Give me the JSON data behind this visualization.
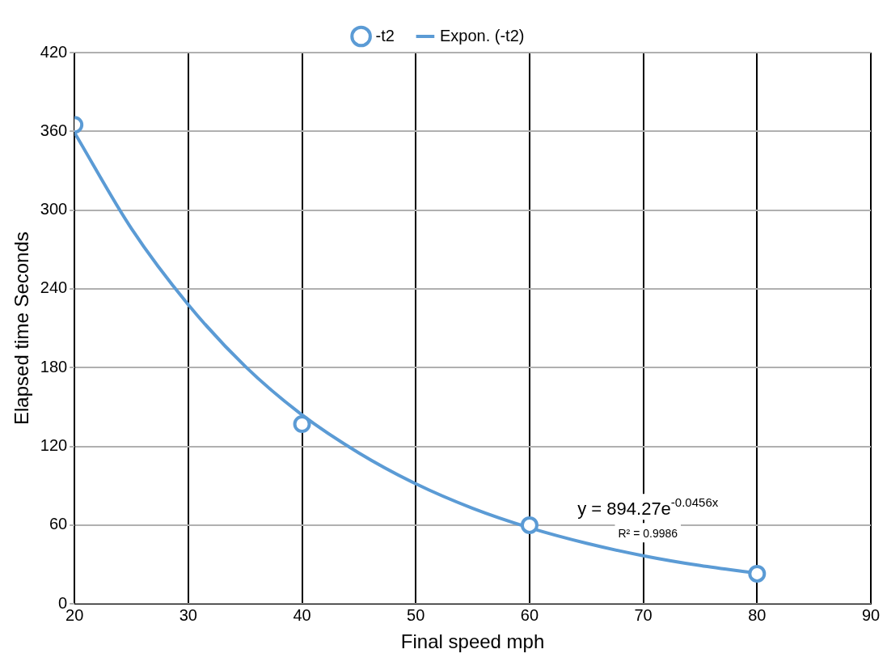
{
  "chart_data": {
    "type": "scatter",
    "xlabel": "Final speed mph",
    "ylabel": "Elapsed time Seconds",
    "xlim": [
      20,
      90
    ],
    "xticks": [
      20,
      30,
      40,
      50,
      60,
      70,
      80,
      90
    ],
    "ylim": [
      0,
      420
    ],
    "yticks": [
      0,
      60,
      120,
      180,
      240,
      300,
      360,
      420
    ],
    "grid": true,
    "legend": "top",
    "series": [
      {
        "name": "-t2",
        "type": "scatter",
        "marker": "circle",
        "color": "#5b9bd5",
        "x": [
          20,
          40,
          60,
          80
        ],
        "values": [
          365,
          137,
          60,
          23
        ]
      },
      {
        "name": "Expon. (-t2)",
        "type": "line",
        "marker": "none",
        "color": "#5b9bd5",
        "x": [
          20,
          25,
          30,
          35,
          40,
          45,
          50,
          55,
          60,
          65,
          70,
          75,
          80
        ],
        "values": [
          359,
          286,
          228,
          181,
          144,
          115,
          91.5,
          72.8,
          58,
          46.2,
          36.7,
          29.2,
          23.3
        ]
      }
    ],
    "annotations": [
      "y = 894.27e$^{-0.0456x}$",
      "R² = 0.9986"
    ]
  }
}
